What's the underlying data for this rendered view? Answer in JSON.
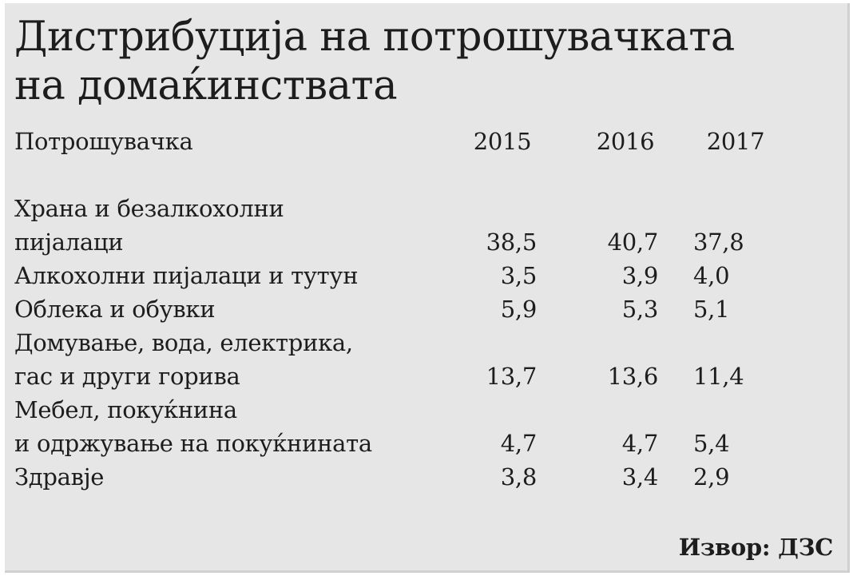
{
  "title": {
    "line1": "Дистрибуција на потрошувачката",
    "line2": "на домаќинствата"
  },
  "table": {
    "header": {
      "label": "Потрошувачка",
      "years": [
        "2015",
        "2016",
        "2017"
      ]
    },
    "rows": [
      {
        "label_lines": [
          "Храна и безалкохолни",
          "пијалаци"
        ],
        "values": [
          "38,5",
          "40,7",
          "37,8"
        ]
      },
      {
        "label_lines": [
          "Алкохолни пијалаци и тутун"
        ],
        "values": [
          "3,5",
          "3,9",
          "4,0"
        ]
      },
      {
        "label_lines": [
          "Облека и обувки"
        ],
        "values": [
          "5,9",
          "5,3",
          "5,1"
        ]
      },
      {
        "label_lines": [
          "Домување, вода, електрика,",
          "гас и други горива"
        ],
        "values": [
          "13,7",
          "13,6",
          "11,4"
        ]
      },
      {
        "label_lines": [
          "Мебел, покуќнина",
          "и одржување на покуќнината"
        ],
        "values": [
          "4,7",
          "4,7",
          "5,4"
        ]
      },
      {
        "label_lines": [
          "Здравје"
        ],
        "values": [
          "3,8",
          "3,4",
          "2,9"
        ]
      }
    ]
  },
  "source": "Извор: ДЗС"
}
